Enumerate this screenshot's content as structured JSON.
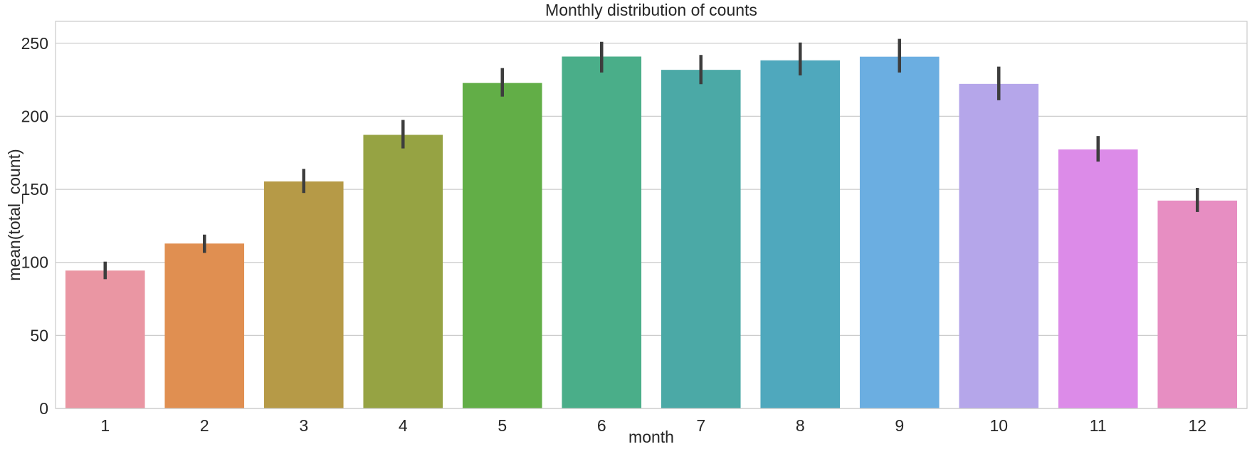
{
  "chart_data": {
    "type": "bar",
    "title": "Monthly distribution of counts",
    "xlabel": "month",
    "ylabel": "mean(total_count)",
    "categories": [
      "1",
      "2",
      "3",
      "4",
      "5",
      "6",
      "7",
      "8",
      "9",
      "10",
      "11",
      "12"
    ],
    "values": [
      94.4,
      112.9,
      155.4,
      187.3,
      222.8,
      240.9,
      231.8,
      238.3,
      240.8,
      222.2,
      177.3,
      142.3
    ],
    "error_low": [
      88.5,
      106.5,
      147.5,
      178.0,
      213.5,
      230.0,
      222.0,
      228.0,
      230.0,
      211.0,
      169.0,
      134.5
    ],
    "error_high": [
      100.5,
      119.0,
      164.0,
      197.5,
      233.0,
      251.0,
      242.0,
      250.5,
      253.0,
      234.0,
      186.5,
      151.0
    ],
    "ylim": [
      0,
      265
    ],
    "yticks": [
      0,
      50,
      100,
      150,
      200,
      250
    ],
    "grid": true,
    "legend": "none",
    "colors": [
      "#ea96a3",
      "#e08f51",
      "#b69a47",
      "#96a343",
      "#62ae47",
      "#4aae89",
      "#4ba9a6",
      "#4fa8bd",
      "#6baee1",
      "#b5a6ea",
      "#dc8be8",
      "#e78ec2"
    ],
    "error_color": "#3d3d3d"
  }
}
